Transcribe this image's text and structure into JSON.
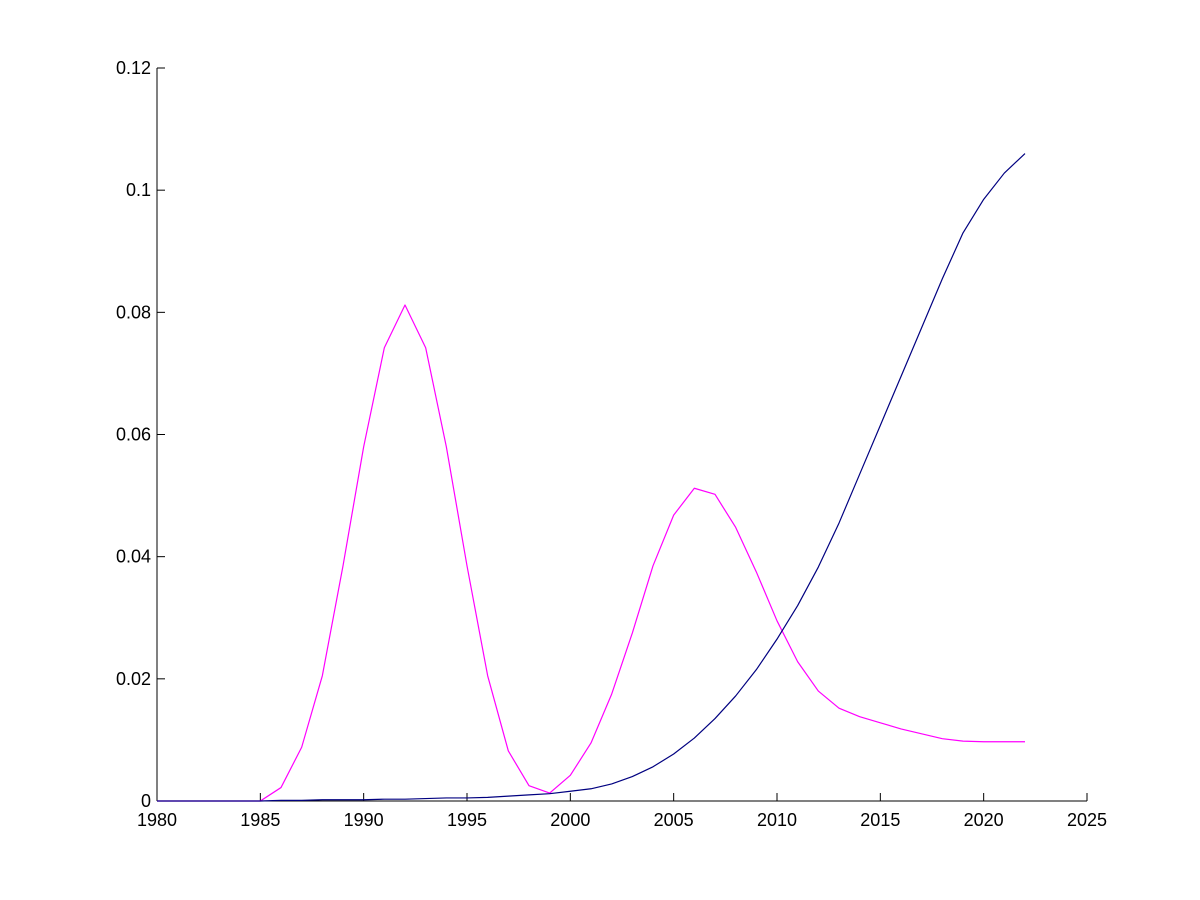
{
  "chart_data": {
    "type": "line",
    "title": "",
    "xlabel": "",
    "ylabel": "",
    "xlim": [
      1980,
      2025
    ],
    "ylim": [
      0,
      0.12
    ],
    "x_ticks": [
      1980,
      1985,
      1990,
      1995,
      2000,
      2005,
      2010,
      2015,
      2020,
      2025
    ],
    "y_ticks": [
      0,
      0.02,
      0.04,
      0.06,
      0.08,
      0.1,
      0.12
    ],
    "x_tick_labels": [
      "1980",
      "1985",
      "1990",
      "1995",
      "2000",
      "2005",
      "2010",
      "2015",
      "2020",
      "2025"
    ],
    "y_tick_labels": [
      "0",
      "0.02",
      "0.04",
      "0.06",
      "0.08",
      "0.1",
      "0.12"
    ],
    "grid": false,
    "legend": "none",
    "x": [
      1980,
      1981,
      1982,
      1983,
      1984,
      1985,
      1986,
      1987,
      1988,
      1989,
      1990,
      1991,
      1992,
      1993,
      1994,
      1995,
      1996,
      1997,
      1998,
      1999,
      2000,
      2001,
      2002,
      2003,
      2004,
      2005,
      2006,
      2007,
      2008,
      2009,
      2010,
      2011,
      2012,
      2013,
      2014,
      2015,
      2016,
      2017,
      2018,
      2019,
      2020,
      2021,
      2022
    ],
    "series": [
      {
        "color": "#ff00ff",
        "values": [
          0,
          0,
          0,
          0,
          0,
          0,
          0.0022,
          0.0088,
          0.0205,
          0.0385,
          0.058,
          0.0742,
          0.0812,
          0.0742,
          0.058,
          0.0385,
          0.0205,
          0.0082,
          0.0025,
          0.0013,
          0.0042,
          0.0095,
          0.0175,
          0.0275,
          0.0385,
          0.0468,
          0.0512,
          0.0502,
          0.0448,
          0.0375,
          0.0295,
          0.0228,
          0.018,
          0.0152,
          0.0138,
          0.0128,
          0.0118,
          0.011,
          0.0102,
          0.0098,
          0.0097,
          0.0097,
          0.0097
        ]
      },
      {
        "color": "#000080",
        "values": [
          0,
          0,
          0,
          0,
          0,
          0,
          0.0001,
          0.0001,
          0.0002,
          0.0002,
          0.0002,
          0.0003,
          0.0003,
          0.0004,
          0.0005,
          0.0005,
          0.0006,
          0.0008,
          0.001,
          0.0012,
          0.0016,
          0.002,
          0.0028,
          0.004,
          0.0056,
          0.0077,
          0.0103,
          0.0135,
          0.0172,
          0.0215,
          0.0265,
          0.032,
          0.0383,
          0.0455,
          0.0535,
          0.0615,
          0.0695,
          0.0775,
          0.0855,
          0.093,
          0.0985,
          0.1028,
          0.106
        ]
      }
    ]
  }
}
